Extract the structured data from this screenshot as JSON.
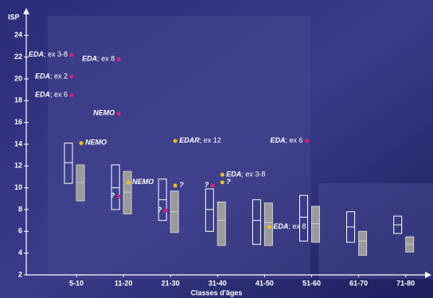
{
  "chart_data": {
    "type": "box",
    "y_label": "ISP",
    "x_label": "Classes d'âges",
    "categories": [
      "5-10",
      "11-20",
      "21-30",
      "31-40",
      "41-50",
      "51-60",
      "61-70",
      "71-80"
    ],
    "ylim": [
      2,
      26
    ],
    "yticks": [
      2,
      4,
      6,
      8,
      10,
      12,
      14,
      16,
      18,
      20,
      22,
      24
    ],
    "series": [
      {
        "color": "#ffffff",
        "fill": "none",
        "low": [
          10.4,
          8.0,
          7.0,
          6.0,
          4.8,
          5.1,
          5.0,
          5.8
        ],
        "median": [
          12.3,
          10.0,
          8.9,
          8.0,
          7.0,
          7.3,
          6.4,
          6.6
        ],
        "high": [
          14.1,
          12.1,
          10.8,
          9.9,
          8.9,
          9.3,
          7.8,
          7.4
        ]
      },
      {
        "color": "#d0d0d0",
        "fill": "#9a9a9a",
        "low": [
          8.8,
          7.6,
          5.9,
          4.7,
          4.7,
          5.0,
          3.8,
          4.1
        ],
        "median": [
          10.5,
          9.6,
          7.8,
          7.0,
          6.8,
          6.7,
          5.1,
          4.8
        ],
        "high": [
          12.1,
          11.5,
          9.7,
          8.7,
          8.6,
          8.3,
          6.0,
          5.5
        ]
      }
    ],
    "points": [
      {
        "category": "5-10",
        "value": 22.2,
        "color": "#e0207a",
        "label": "EDA",
        "detail": "; ex 3-8"
      },
      {
        "category": "5-10",
        "value": 20.2,
        "color": "#e0207a",
        "label": "EDA",
        "detail": "; ex 2"
      },
      {
        "category": "5-10",
        "value": 18.5,
        "color": "#e0207a",
        "label": "EDA",
        "detail": "; ex 6"
      },
      {
        "category": "5-10",
        "value": 14.1,
        "color": "#f0c020",
        "label": "NEMO"
      },
      {
        "category": "11-20",
        "value": 21.8,
        "color": "#e0207a",
        "label": "EDA",
        "detail": "; ex 8"
      },
      {
        "category": "11-20",
        "value": 16.8,
        "color": "#e0207a",
        "label": "NEMO"
      },
      {
        "category": "11-20",
        "value": 10.5,
        "color": "#f0c020",
        "label": "NEMO"
      },
      {
        "category": "11-20",
        "value": 9.2,
        "color": "#e0207a",
        "label": "?"
      },
      {
        "category": "21-30",
        "value": 14.3,
        "color": "#f0c020",
        "label": "EDAR",
        "detail": "; ex 12"
      },
      {
        "category": "21-30",
        "value": 10.2,
        "color": "#f0c020",
        "label": "?"
      },
      {
        "category": "21-30",
        "value": 7.9,
        "color": "#e0207a",
        "label": "?"
      },
      {
        "category": "31-40",
        "value": 11.2,
        "color": "#f0c020",
        "label": "EDA",
        "detail": "; ex 3-8"
      },
      {
        "category": "31-40",
        "value": 10.5,
        "color": "#f0c020",
        "label": "?"
      },
      {
        "category": "31-40",
        "value": 10.2,
        "color": "#e0207a",
        "label": "?"
      },
      {
        "category": "41-50",
        "value": 6.4,
        "color": "#f0c020",
        "label": "EDA",
        "detail": "; ex 8"
      },
      {
        "category": "51-60",
        "value": 14.3,
        "color": "#e0207a",
        "label": "EDA",
        "detail": "; ex 6"
      }
    ]
  }
}
